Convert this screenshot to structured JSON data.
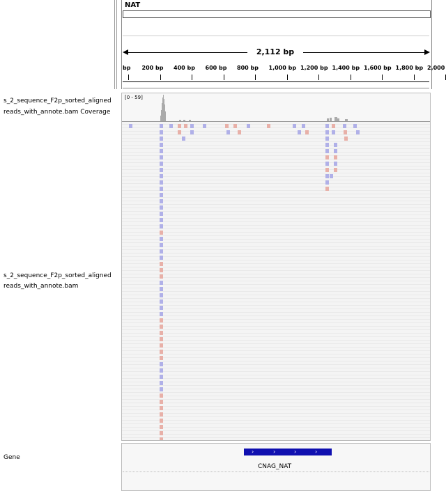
{
  "locus": {
    "chromosome": "NAT",
    "span": "2,112 bp",
    "ticks": [
      "bp",
      "200 bp",
      "400 bp",
      "600 bp",
      "800 bp",
      "1,000 bp",
      "1,200 bp",
      "1,400 bp",
      "1,600 bp",
      "1,800 bp",
      "2,000 bp"
    ]
  },
  "tracks": {
    "coverage": {
      "name_line1": "s_2_sequence_F2p_sorted_aligned",
      "name_line2": "reads_with_annote.bam Coverage",
      "range": "[0 - 59]"
    },
    "alignment": {
      "name_line1": "s_2_sequence_F2p_sorted_aligned",
      "name_line2": "reads_with_annote.bam"
    },
    "gene": {
      "name": "Gene",
      "feature_label": "CNAG_NAT",
      "strand_glyph": "›",
      "color": "#1010b0"
    }
  },
  "colors": {
    "read_forward": "#b0b0e8",
    "read_reverse": "#e8b0a8",
    "coverage": "#aaaaaa"
  }
}
